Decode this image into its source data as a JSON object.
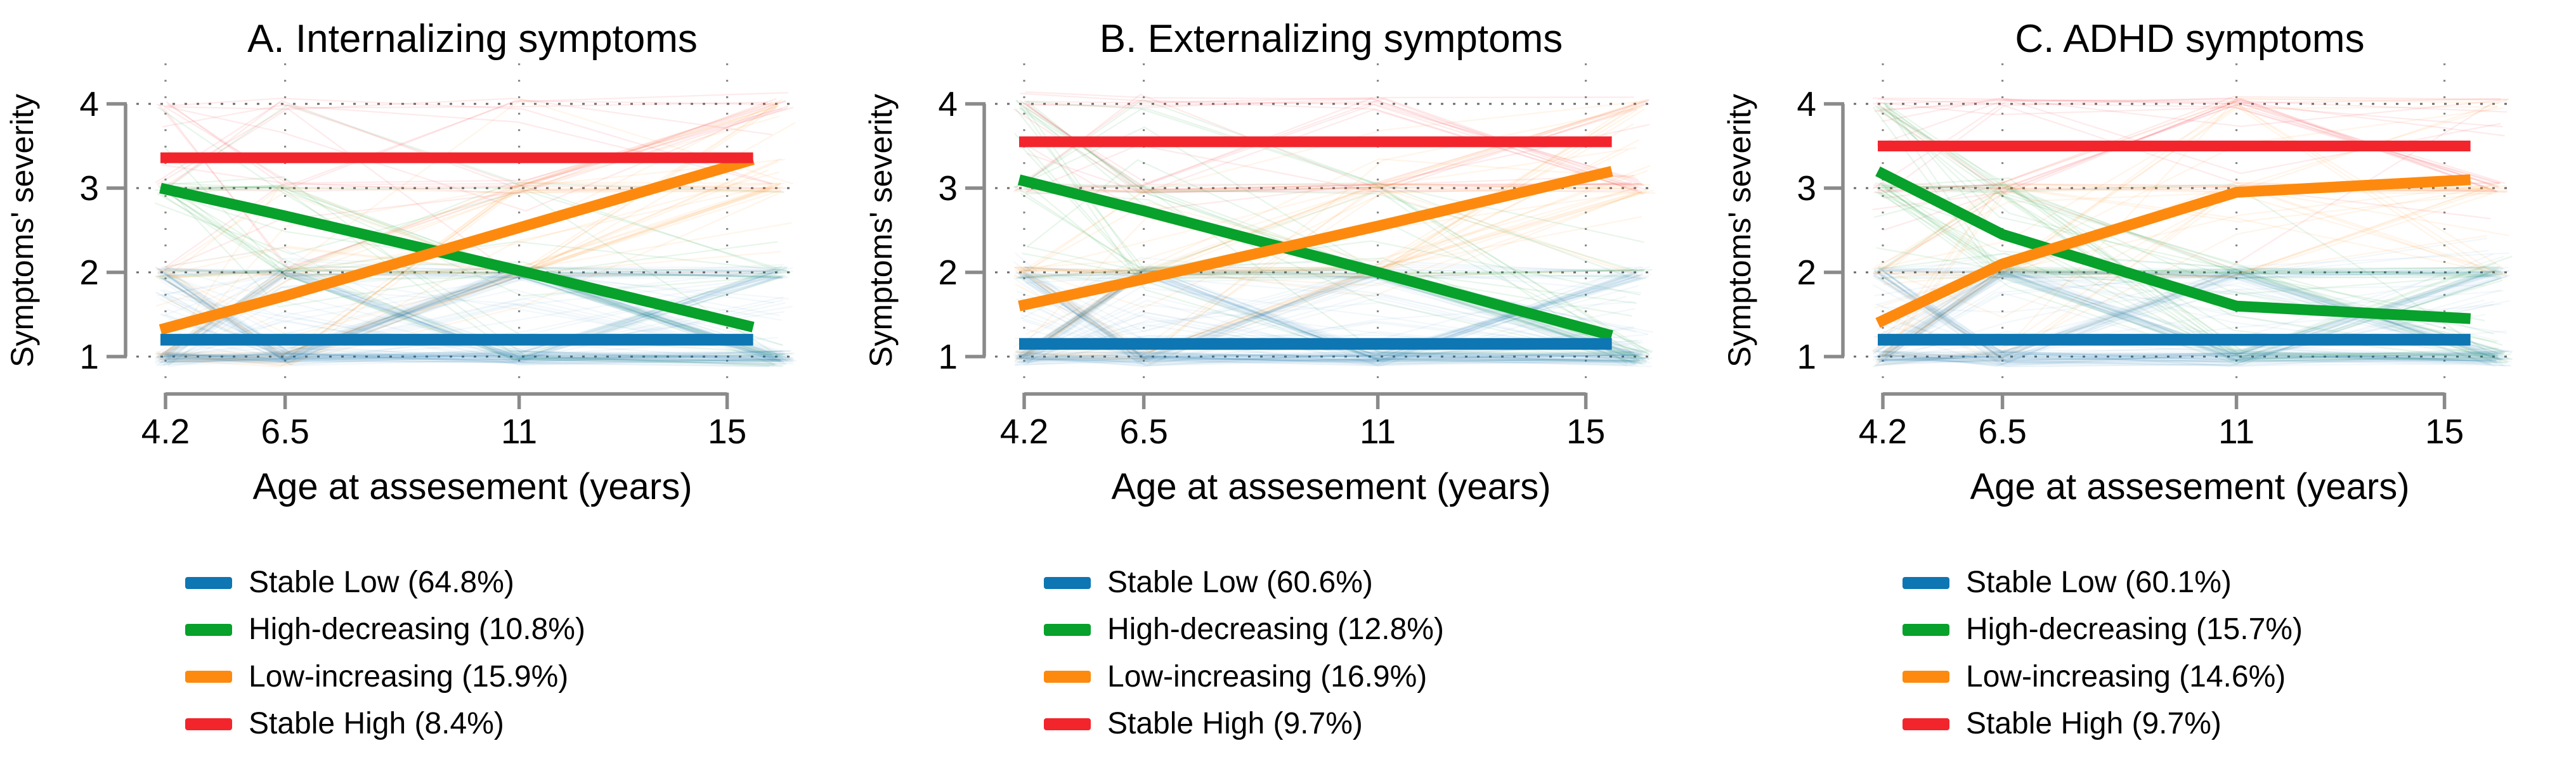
{
  "chart_data": [
    {
      "type": "line",
      "title": "A. Internalizing symptoms",
      "xlabel": "Age at assesement (years)",
      "ylabel": "Symptoms' severity",
      "x_ticks": [
        4.2,
        6.5,
        11,
        15
      ],
      "x_tick_labels": [
        "4.2",
        "6.5",
        "11",
        "15"
      ],
      "y_ticks": [
        1,
        2,
        3,
        4
      ],
      "y_tick_labels": [
        "1",
        "2",
        "3",
        "4"
      ],
      "ylim": [
        1,
        4
      ],
      "xlim": [
        4.2,
        15.5
      ],
      "x_line_points": [
        4.2,
        6.5,
        11,
        15.5
      ],
      "grid": "dotted",
      "legend_position": "below",
      "series": [
        {
          "name": "Stable Low (64.8%)",
          "key": "stable-low",
          "percent": 64.8,
          "color": "#0e76b2",
          "values": [
            1.2,
            1.2,
            1.2,
            1.2
          ]
        },
        {
          "name": "High-decreasing (10.8%)",
          "key": "high-decreasing",
          "percent": 10.8,
          "color": "#07a12b",
          "values": [
            3.0,
            2.67,
            2.02,
            1.35
          ]
        },
        {
          "name": "Low-increasing (15.9%)",
          "key": "low-increasing",
          "percent": 15.9,
          "color": "#fd8a0e",
          "values": [
            1.32,
            1.72,
            2.53,
            3.34
          ]
        },
        {
          "name": "Stable High (8.4%)",
          "key": "stable-high",
          "percent": 8.4,
          "color": "#f2252d",
          "values": [
            3.36,
            3.36,
            3.36,
            3.36
          ]
        }
      ]
    },
    {
      "type": "line",
      "title": "B. Externalizing symptoms",
      "xlabel": "Age at assesement (years)",
      "ylabel": "Symptoms' severity",
      "x_ticks": [
        4.2,
        6.5,
        11,
        15
      ],
      "x_tick_labels": [
        "4.2",
        "6.5",
        "11",
        "15"
      ],
      "y_ticks": [
        1,
        2,
        3,
        4
      ],
      "y_tick_labels": [
        "1",
        "2",
        "3",
        "4"
      ],
      "ylim": [
        1,
        4
      ],
      "xlim": [
        4.2,
        15.5
      ],
      "x_line_points": [
        4.2,
        6.5,
        11,
        15.5
      ],
      "grid": "dotted",
      "legend_position": "below",
      "series": [
        {
          "name": "Stable Low (60.6%)",
          "key": "stable-low",
          "percent": 60.6,
          "color": "#0e76b2",
          "values": [
            1.15,
            1.15,
            1.15,
            1.15
          ]
        },
        {
          "name": "High-decreasing (12.8%)",
          "key": "high-decreasing",
          "percent": 12.8,
          "color": "#07a12b",
          "values": [
            3.1,
            2.73,
            2.0,
            1.25
          ]
        },
        {
          "name": "Low-increasing (16.9%)",
          "key": "low-increasing",
          "percent": 16.9,
          "color": "#fd8a0e",
          "values": [
            1.6,
            1.92,
            2.55,
            3.2
          ]
        },
        {
          "name": "Stable High (9.7%)",
          "key": "stable-high",
          "percent": 9.7,
          "color": "#f2252d",
          "values": [
            3.55,
            3.55,
            3.55,
            3.55
          ]
        }
      ]
    },
    {
      "type": "line",
      "title": "C. ADHD symptoms",
      "xlabel": "Age at assesement (years)",
      "ylabel": "Symptoms' severity",
      "x_ticks": [
        4.2,
        6.5,
        11,
        15
      ],
      "x_tick_labels": [
        "4.2",
        "6.5",
        "11",
        "15"
      ],
      "y_ticks": [
        1,
        2,
        3,
        4
      ],
      "y_tick_labels": [
        "1",
        "2",
        "3",
        "4"
      ],
      "ylim": [
        1,
        4
      ],
      "xlim": [
        4.2,
        15.5
      ],
      "x_line_points": [
        4.2,
        6.5,
        11,
        15.5
      ],
      "grid": "dotted",
      "legend_position": "below",
      "series": [
        {
          "name": "Stable Low (60.1%)",
          "key": "stable-low",
          "percent": 60.1,
          "color": "#0e76b2",
          "values": [
            1.2,
            1.2,
            1.2,
            1.2
          ]
        },
        {
          "name": "High-decreasing (15.7%)",
          "key": "high-decreasing",
          "percent": 15.7,
          "color": "#07a12b",
          "values": [
            3.2,
            2.45,
            1.6,
            1.45
          ]
        },
        {
          "name": "Low-increasing (14.6%)",
          "key": "low-increasing",
          "percent": 14.6,
          "color": "#fd8a0e",
          "values": [
            1.4,
            2.1,
            2.95,
            3.1
          ]
        },
        {
          "name": "Stable High (9.7%)",
          "key": "stable-high",
          "percent": 9.7,
          "color": "#f2252d",
          "values": [
            3.5,
            3.5,
            3.5,
            3.5
          ]
        }
      ]
    }
  ]
}
